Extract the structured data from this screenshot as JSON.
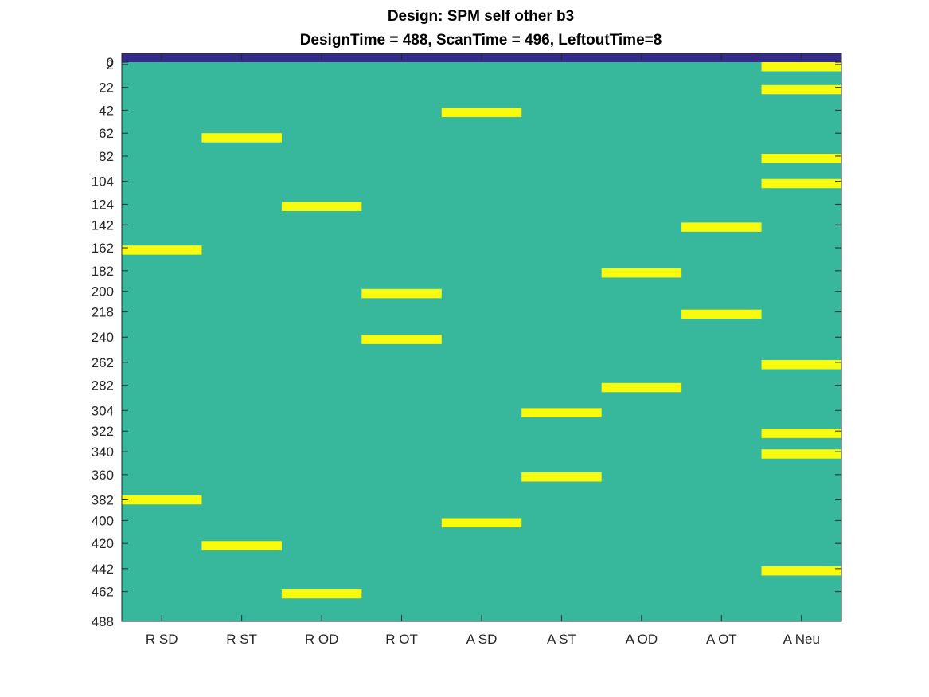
{
  "chart_data": {
    "type": "heatmap",
    "title": "Design: SPM self other b3",
    "subtitle": "DesignTime = 488, ScanTime = 496, LeftoutTime=8",
    "xlabel": "",
    "ylabel": "",
    "categories": [
      "R SD",
      "R ST",
      "R OD",
      "R OT",
      "A SD",
      "A ST",
      "A OD",
      "A OT",
      "A Neu"
    ],
    "yticks": [
      0,
      2,
      22,
      42,
      62,
      82,
      104,
      124,
      142,
      162,
      182,
      200,
      218,
      240,
      262,
      282,
      304,
      322,
      340,
      360,
      382,
      400,
      420,
      442,
      462,
      488
    ],
    "ylim": [
      0,
      488
    ],
    "y_direction": "top-to-bottom",
    "colors": {
      "background": "#37b89d",
      "header_band": "#352a87",
      "event": "#f9fb0e",
      "axis": "#262626"
    },
    "events": [
      {
        "column": "R SD",
        "onset": 160,
        "duration": 8
      },
      {
        "column": "R SD",
        "onset": 378,
        "duration": 8
      },
      {
        "column": "R ST",
        "onset": 62,
        "duration": 8
      },
      {
        "column": "R ST",
        "onset": 418,
        "duration": 8
      },
      {
        "column": "R OD",
        "onset": 122,
        "duration": 8
      },
      {
        "column": "R OD",
        "onset": 460,
        "duration": 8
      },
      {
        "column": "R OT",
        "onset": 198,
        "duration": 8
      },
      {
        "column": "R OT",
        "onset": 238,
        "duration": 8
      },
      {
        "column": "A SD",
        "onset": 40,
        "duration": 8
      },
      {
        "column": "A SD",
        "onset": 398,
        "duration": 8
      },
      {
        "column": "A ST",
        "onset": 302,
        "duration": 8
      },
      {
        "column": "A ST",
        "onset": 358,
        "duration": 8
      },
      {
        "column": "A OD",
        "onset": 180,
        "duration": 8
      },
      {
        "column": "A OD",
        "onset": 280,
        "duration": 8
      },
      {
        "column": "A OT",
        "onset": 140,
        "duration": 8
      },
      {
        "column": "A OT",
        "onset": 216,
        "duration": 8
      },
      {
        "column": "A Neu",
        "onset": 0,
        "duration": 8
      },
      {
        "column": "A Neu",
        "onset": 20,
        "duration": 8
      },
      {
        "column": "A Neu",
        "onset": 80,
        "duration": 8
      },
      {
        "column": "A Neu",
        "onset": 102,
        "duration": 8
      },
      {
        "column": "A Neu",
        "onset": 260,
        "duration": 8
      },
      {
        "column": "A Neu",
        "onset": 320,
        "duration": 8
      },
      {
        "column": "A Neu",
        "onset": 338,
        "duration": 8
      },
      {
        "column": "A Neu",
        "onset": 440,
        "duration": 8
      }
    ]
  }
}
